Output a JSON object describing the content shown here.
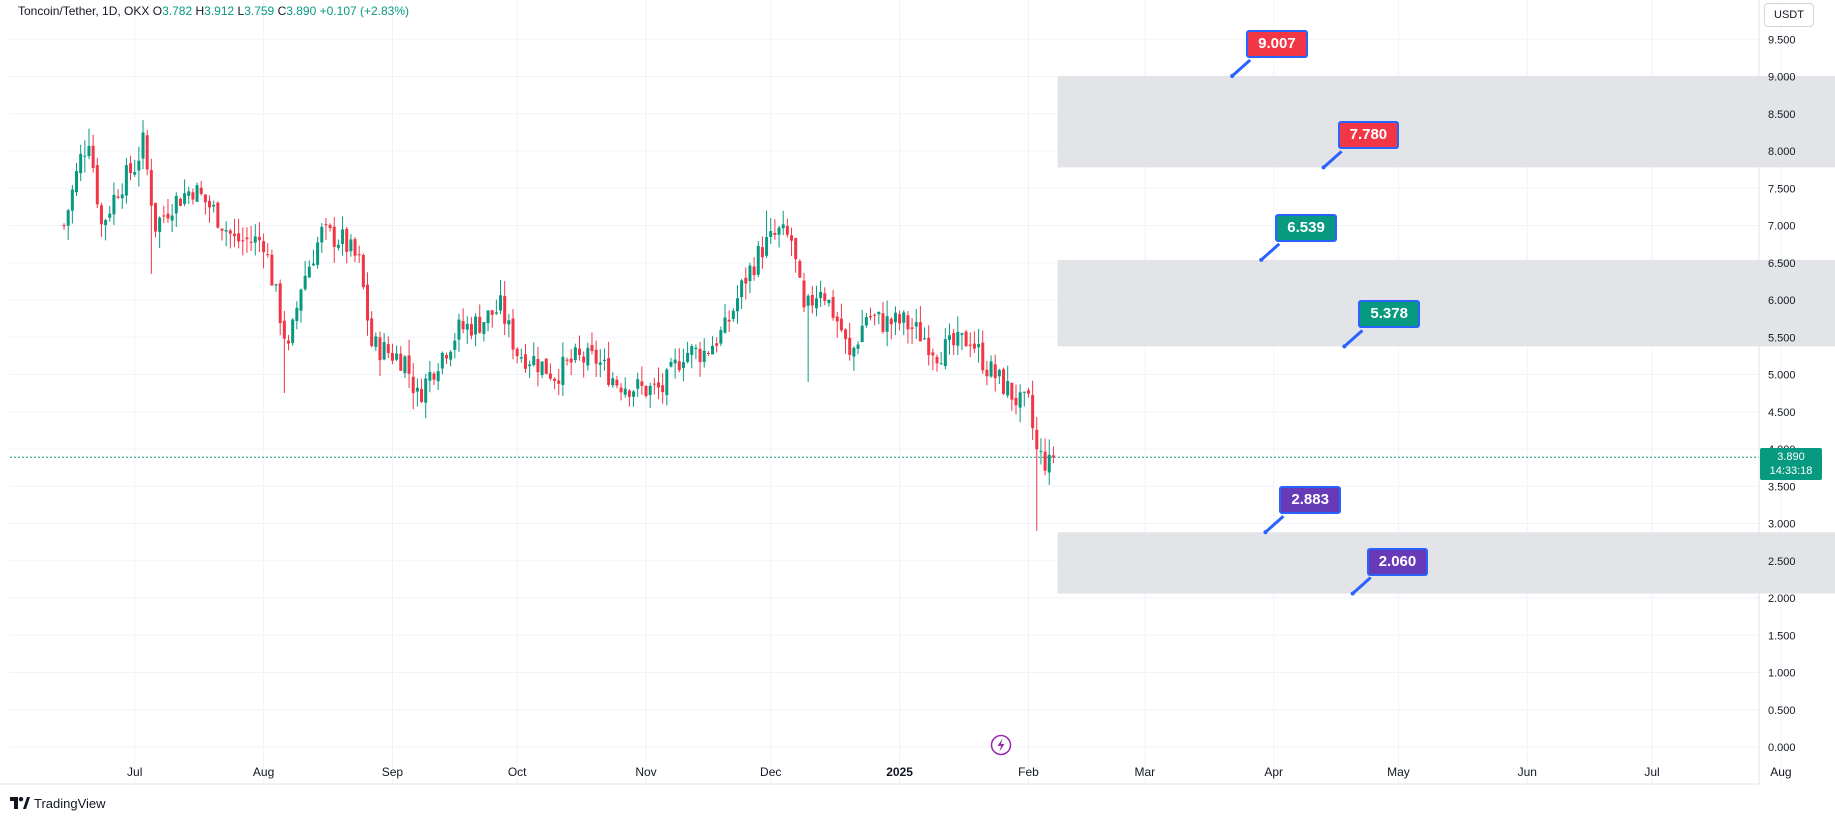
{
  "header": {
    "symbol": "Toncoin/Tether, 1D, OKX",
    "open_label": "O",
    "open": "3.782",
    "high_label": "H",
    "high": "3.912",
    "low_label": "L",
    "low": "3.759",
    "close_label": "C",
    "close": "3.890",
    "change": "+0.107 (+2.83%)"
  },
  "currency_button": "USDT",
  "last_price": {
    "value": "3.890",
    "countdown": "14:33:18"
  },
  "branding": "TradingView",
  "colors": {
    "up": "#089981",
    "down": "#f23645",
    "zone": "#e1e3e6",
    "grid": "#f0f3fa",
    "red_label": "#f23645",
    "green_label": "#089981",
    "purple_label": "#673ab7",
    "pointer": "#2962ff"
  },
  "chart_data": {
    "type": "candlestick",
    "symbol": "Toncoin/Tether",
    "interval": "1D",
    "exchange": "OKX",
    "y_ticks": [
      "0.000",
      "0.500",
      "1.000",
      "1.500",
      "2.000",
      "2.500",
      "3.000",
      "3.500",
      "4.000",
      "4.500",
      "5.000",
      "5.500",
      "6.000",
      "6.500",
      "7.000",
      "7.500",
      "8.000",
      "8.500",
      "9.000",
      "9.500"
    ],
    "x_ticks": [
      "Jul",
      "Aug",
      "Sep",
      "Oct",
      "Nov",
      "Dec",
      "2025",
      "Feb",
      "Mar",
      "Apr",
      "May",
      "Jun",
      "Jul",
      "Aug"
    ],
    "ylim": [
      -0.15,
      10.0
    ],
    "close_path": [
      {
        "date": "2024-06-14",
        "close": 7.0
      },
      {
        "date": "2024-06-18",
        "close": 7.9
      },
      {
        "date": "2024-06-20",
        "close": 8.2
      },
      {
        "date": "2024-06-23",
        "close": 7.0
      },
      {
        "date": "2024-06-27",
        "close": 7.5
      },
      {
        "date": "2024-07-01",
        "close": 7.8
      },
      {
        "date": "2024-07-03",
        "close": 8.1
      },
      {
        "date": "2024-07-06",
        "close": 7.0
      },
      {
        "date": "2024-07-10",
        "close": 7.3
      },
      {
        "date": "2024-07-15",
        "close": 7.5
      },
      {
        "date": "2024-07-20",
        "close": 7.2
      },
      {
        "date": "2024-07-25",
        "close": 6.8
      },
      {
        "date": "2024-08-01",
        "close": 6.8
      },
      {
        "date": "2024-08-05",
        "close": 5.8
      },
      {
        "date": "2024-08-07",
        "close": 5.3
      },
      {
        "date": "2024-08-10",
        "close": 6.2
      },
      {
        "date": "2024-08-15",
        "close": 6.9
      },
      {
        "date": "2024-08-20",
        "close": 6.8
      },
      {
        "date": "2024-08-24",
        "close": 6.5
      },
      {
        "date": "2024-08-27",
        "close": 5.4
      },
      {
        "date": "2024-08-31",
        "close": 5.3
      },
      {
        "date": "2024-09-04",
        "close": 5.2
      },
      {
        "date": "2024-09-07",
        "close": 4.7
      },
      {
        "date": "2024-09-12",
        "close": 5.2
      },
      {
        "date": "2024-09-17",
        "close": 5.6
      },
      {
        "date": "2024-09-22",
        "close": 5.7
      },
      {
        "date": "2024-09-27",
        "close": 5.9
      },
      {
        "date": "2024-10-01",
        "close": 5.3
      },
      {
        "date": "2024-10-05",
        "close": 5.2
      },
      {
        "date": "2024-10-10",
        "close": 5.0
      },
      {
        "date": "2024-10-15",
        "close": 5.2
      },
      {
        "date": "2024-10-20",
        "close": 5.2
      },
      {
        "date": "2024-10-25",
        "close": 4.9
      },
      {
        "date": "2024-10-31",
        "close": 4.8
      },
      {
        "date": "2024-11-05",
        "close": 4.8
      },
      {
        "date": "2024-11-10",
        "close": 5.3
      },
      {
        "date": "2024-11-15",
        "close": 5.3
      },
      {
        "date": "2024-11-20",
        "close": 5.6
      },
      {
        "date": "2024-11-25",
        "close": 6.3
      },
      {
        "date": "2024-11-29",
        "close": 6.7
      },
      {
        "date": "2024-12-03",
        "close": 6.9
      },
      {
        "date": "2024-12-06",
        "close": 6.8
      },
      {
        "date": "2024-12-09",
        "close": 5.8
      },
      {
        "date": "2024-12-13",
        "close": 6.2
      },
      {
        "date": "2024-12-18",
        "close": 5.6
      },
      {
        "date": "2024-12-20",
        "close": 5.2
      },
      {
        "date": "2024-12-24",
        "close": 5.8
      },
      {
        "date": "2024-12-28",
        "close": 5.7
      },
      {
        "date": "2025-01-02",
        "close": 5.7
      },
      {
        "date": "2025-01-07",
        "close": 5.5
      },
      {
        "date": "2025-01-10",
        "close": 5.3
      },
      {
        "date": "2025-01-15",
        "close": 5.4
      },
      {
        "date": "2025-01-18",
        "close": 5.5
      },
      {
        "date": "2025-01-22",
        "close": 5.1
      },
      {
        "date": "2025-01-27",
        "close": 4.8
      },
      {
        "date": "2025-01-30",
        "close": 4.6
      },
      {
        "date": "2025-02-01",
        "close": 4.6
      },
      {
        "date": "2025-02-03",
        "close": 3.95
      },
      {
        "date": "2025-02-06",
        "close": 3.78
      },
      {
        "date": "2025-02-07",
        "close": 3.89
      }
    ],
    "notable_wicks": [
      {
        "date": "2024-07-05",
        "low": 6.35
      },
      {
        "date": "2024-08-06",
        "low": 4.75
      },
      {
        "date": "2024-12-10",
        "low": 4.9
      },
      {
        "date": "2025-02-03",
        "low": 2.9
      },
      {
        "date": "2024-06-20",
        "high": 8.3
      },
      {
        "date": "2024-11-30",
        "high": 7.2
      }
    ],
    "last_close": 3.89,
    "zones": [
      {
        "from": 7.78,
        "to": 9.007,
        "start": "2025-02-08",
        "end": "2025-08-20"
      },
      {
        "from": 5.378,
        "to": 6.539,
        "start": "2025-02-08",
        "end": "2025-08-20"
      },
      {
        "from": 2.06,
        "to": 2.883,
        "start": "2025-02-08",
        "end": "2025-08-20"
      }
    ],
    "callouts": [
      {
        "label": "9.007",
        "value": 9.007,
        "anchor_date": "2025-03-22",
        "color": "red"
      },
      {
        "label": "7.780",
        "value": 7.78,
        "anchor_date": "2025-04-13",
        "color": "red"
      },
      {
        "label": "6.539",
        "value": 6.539,
        "anchor_date": "2025-03-29",
        "color": "green"
      },
      {
        "label": "5.378",
        "value": 5.378,
        "anchor_date": "2025-04-18",
        "color": "green"
      },
      {
        "label": "2.883",
        "value": 2.883,
        "anchor_date": "2025-03-30",
        "color": "purple"
      },
      {
        "label": "2.060",
        "value": 2.06,
        "anchor_date": "2025-04-20",
        "color": "purple"
      }
    ]
  }
}
